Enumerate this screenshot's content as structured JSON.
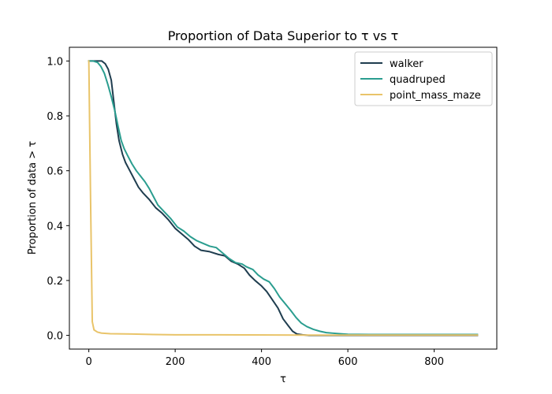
{
  "chart_data": {
    "type": "line",
    "title": "Proportion of Data Superior to τ vs τ",
    "xlabel": "τ",
    "ylabel": "Proportion of data > τ",
    "xlim": [
      -45,
      945
    ],
    "ylim": [
      -0.05,
      1.05
    ],
    "xticks": [
      0,
      200,
      400,
      600,
      800
    ],
    "yticks": [
      0.0,
      0.2,
      0.4,
      0.6,
      0.8,
      1.0
    ],
    "xtick_labels": [
      "0",
      "200",
      "400",
      "600",
      "800"
    ],
    "ytick_labels": [
      "0.0",
      "0.2",
      "0.4",
      "0.6",
      "0.8",
      "1.0"
    ],
    "grid": false,
    "legend_position": "top-right",
    "series": [
      {
        "name": "walker",
        "color": "#1f3d4f",
        "points": [
          [
            0,
            1.0
          ],
          [
            10,
            1.0
          ],
          [
            20,
            1.0
          ],
          [
            30,
            1.0
          ],
          [
            38,
            0.99
          ],
          [
            45,
            0.97
          ],
          [
            52,
            0.93
          ],
          [
            58,
            0.85
          ],
          [
            64,
            0.77
          ],
          [
            70,
            0.71
          ],
          [
            78,
            0.66
          ],
          [
            85,
            0.63
          ],
          [
            95,
            0.6
          ],
          [
            105,
            0.57
          ],
          [
            115,
            0.54
          ],
          [
            125,
            0.52
          ],
          [
            140,
            0.495
          ],
          [
            155,
            0.465
          ],
          [
            170,
            0.445
          ],
          [
            185,
            0.42
          ],
          [
            200,
            0.39
          ],
          [
            215,
            0.37
          ],
          [
            230,
            0.35
          ],
          [
            245,
            0.325
          ],
          [
            260,
            0.31
          ],
          [
            280,
            0.305
          ],
          [
            300,
            0.295
          ],
          [
            315,
            0.29
          ],
          [
            330,
            0.27
          ],
          [
            345,
            0.26
          ],
          [
            360,
            0.245
          ],
          [
            372,
            0.22
          ],
          [
            385,
            0.2
          ],
          [
            400,
            0.18
          ],
          [
            412,
            0.16
          ],
          [
            425,
            0.13
          ],
          [
            438,
            0.1
          ],
          [
            450,
            0.06
          ],
          [
            462,
            0.035
          ],
          [
            472,
            0.015
          ],
          [
            482,
            0.005
          ],
          [
            495,
            0.002
          ],
          [
            510,
            0.0
          ],
          [
            600,
            0.0
          ],
          [
            900,
            0.0
          ]
        ]
      },
      {
        "name": "quadruped",
        "color": "#2a9d8f",
        "points": [
          [
            0,
            1.0
          ],
          [
            10,
            1.0
          ],
          [
            20,
            0.995
          ],
          [
            28,
            0.98
          ],
          [
            36,
            0.955
          ],
          [
            44,
            0.915
          ],
          [
            52,
            0.87
          ],
          [
            60,
            0.82
          ],
          [
            68,
            0.76
          ],
          [
            75,
            0.71
          ],
          [
            82,
            0.68
          ],
          [
            90,
            0.655
          ],
          [
            100,
            0.625
          ],
          [
            110,
            0.6
          ],
          [
            120,
            0.58
          ],
          [
            130,
            0.56
          ],
          [
            140,
            0.535
          ],
          [
            150,
            0.505
          ],
          [
            160,
            0.475
          ],
          [
            175,
            0.45
          ],
          [
            190,
            0.425
          ],
          [
            205,
            0.395
          ],
          [
            220,
            0.38
          ],
          [
            235,
            0.36
          ],
          [
            250,
            0.345
          ],
          [
            265,
            0.335
          ],
          [
            280,
            0.325
          ],
          [
            295,
            0.32
          ],
          [
            310,
            0.3
          ],
          [
            325,
            0.28
          ],
          [
            340,
            0.265
          ],
          [
            355,
            0.26
          ],
          [
            365,
            0.25
          ],
          [
            380,
            0.24
          ],
          [
            392,
            0.22
          ],
          [
            405,
            0.205
          ],
          [
            418,
            0.195
          ],
          [
            430,
            0.17
          ],
          [
            442,
            0.14
          ],
          [
            455,
            0.115
          ],
          [
            468,
            0.09
          ],
          [
            480,
            0.065
          ],
          [
            492,
            0.045
          ],
          [
            505,
            0.032
          ],
          [
            520,
            0.022
          ],
          [
            535,
            0.015
          ],
          [
            550,
            0.01
          ],
          [
            565,
            0.008
          ],
          [
            580,
            0.006
          ],
          [
            600,
            0.004
          ],
          [
            650,
            0.003
          ],
          [
            750,
            0.003
          ],
          [
            900,
            0.003
          ]
        ]
      },
      {
        "name": "point_mass_maze",
        "color": "#e9c46a",
        "points": [
          [
            0,
            1.0
          ],
          [
            4,
            0.5
          ],
          [
            8,
            0.05
          ],
          [
            12,
            0.02
          ],
          [
            20,
            0.012
          ],
          [
            30,
            0.008
          ],
          [
            50,
            0.006
          ],
          [
            100,
            0.005
          ],
          [
            150,
            0.003
          ],
          [
            200,
            0.002
          ],
          [
            300,
            0.002
          ],
          [
            500,
            0.001
          ],
          [
            900,
            0.001
          ]
        ]
      }
    ]
  }
}
